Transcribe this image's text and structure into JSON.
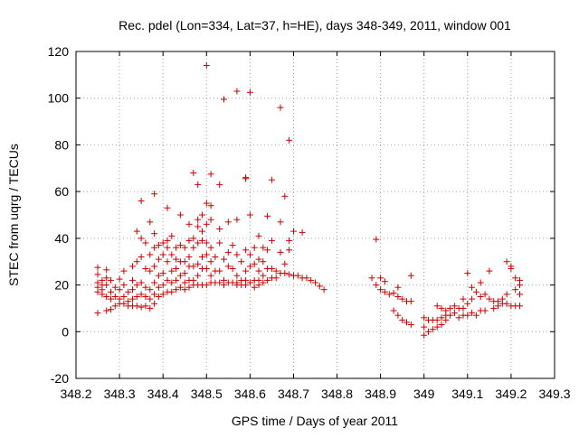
{
  "chart_data": {
    "type": "scatter",
    "title": "Rec. pdel (Lon=334, Lat=37, h=HE), days 348-349, 2011, window 001",
    "xlabel": "GPS time / Days of year 2011",
    "ylabel": "STEC from uqrg / TECUs",
    "xlim": [
      348.2,
      349.3
    ],
    "ylim": [
      -20,
      120
    ],
    "x_ticks": [
      348.2,
      348.3,
      348.4,
      348.5,
      348.6,
      348.7,
      348.8,
      348.9,
      349.0,
      349.1,
      349.2,
      349.3
    ],
    "x_tick_labels": [
      "348.2",
      "348.3",
      "348.4",
      "348.5",
      "348.6",
      "348.7",
      "348.8",
      "348.9",
      "349",
      "349.1",
      "349.2",
      "349.3"
    ],
    "y_ticks": [
      -20,
      0,
      20,
      40,
      60,
      80,
      100,
      120
    ],
    "y_tick_labels": [
      "-20",
      "0",
      "20",
      "40",
      "60",
      "80",
      "100",
      "120"
    ],
    "grid": true,
    "marker": "+",
    "color": "#cc0000",
    "points": [
      [
        348.25,
        27.5
      ],
      [
        348.25,
        24.5
      ],
      [
        348.25,
        21
      ],
      [
        348.25,
        19
      ],
      [
        348.25,
        17
      ],
      [
        348.25,
        8
      ],
      [
        348.26,
        22
      ],
      [
        348.26,
        20
      ],
      [
        348.26,
        18
      ],
      [
        348.26,
        16
      ],
      [
        348.27,
        26.5
      ],
      [
        348.27,
        23
      ],
      [
        348.27,
        20
      ],
      [
        348.27,
        15
      ],
      [
        348.27,
        9
      ],
      [
        348.28,
        22
      ],
      [
        348.28,
        17
      ],
      [
        348.28,
        14
      ],
      [
        348.28,
        9.5
      ],
      [
        348.29,
        19
      ],
      [
        348.29,
        15
      ],
      [
        348.29,
        11
      ],
      [
        348.3,
        22.5
      ],
      [
        348.3,
        18
      ],
      [
        348.3,
        14
      ],
      [
        348.3,
        12
      ],
      [
        348.31,
        26
      ],
      [
        348.31,
        20
      ],
      [
        348.31,
        15
      ],
      [
        348.31,
        12
      ],
      [
        348.32,
        17
      ],
      [
        348.32,
        13
      ],
      [
        348.32,
        11
      ],
      [
        348.33,
        28
      ],
      [
        348.33,
        22
      ],
      [
        348.33,
        18
      ],
      [
        348.33,
        14
      ],
      [
        348.33,
        11
      ],
      [
        348.34,
        43
      ],
      [
        348.34,
        30
      ],
      [
        348.34,
        20
      ],
      [
        348.34,
        15
      ],
      [
        348.34,
        11
      ],
      [
        348.35,
        56
      ],
      [
        348.35,
        40
      ],
      [
        348.35,
        32
      ],
      [
        348.35,
        21
      ],
      [
        348.35,
        16
      ],
      [
        348.35,
        10.5
      ],
      [
        348.36,
        38
      ],
      [
        348.36,
        27
      ],
      [
        348.36,
        19
      ],
      [
        348.36,
        15
      ],
      [
        348.36,
        11
      ],
      [
        348.37,
        47
      ],
      [
        348.37,
        33
      ],
      [
        348.37,
        26
      ],
      [
        348.37,
        18
      ],
      [
        348.37,
        14
      ],
      [
        348.37,
        10
      ],
      [
        348.38,
        59
      ],
      [
        348.38,
        42
      ],
      [
        348.38,
        36
      ],
      [
        348.38,
        28
      ],
      [
        348.38,
        21
      ],
      [
        348.38,
        16
      ],
      [
        348.38,
        12
      ],
      [
        348.39,
        37
      ],
      [
        348.39,
        31
      ],
      [
        348.39,
        24
      ],
      [
        348.39,
        19
      ],
      [
        348.39,
        15
      ],
      [
        348.4,
        38
      ],
      [
        348.4,
        33
      ],
      [
        348.4,
        25
      ],
      [
        348.4,
        20
      ],
      [
        348.4,
        16
      ],
      [
        348.41,
        53
      ],
      [
        348.41,
        39
      ],
      [
        348.41,
        36
      ],
      [
        348.41,
        30
      ],
      [
        348.41,
        22
      ],
      [
        348.41,
        17
      ],
      [
        348.42,
        41
      ],
      [
        348.42,
        33
      ],
      [
        348.42,
        26
      ],
      [
        348.42,
        21
      ],
      [
        348.42,
        17
      ],
      [
        348.43,
        36
      ],
      [
        348.43,
        31
      ],
      [
        348.43,
        27
      ],
      [
        348.43,
        22
      ],
      [
        348.43,
        18
      ],
      [
        348.44,
        50
      ],
      [
        348.44,
        37
      ],
      [
        348.44,
        30
      ],
      [
        348.44,
        24
      ],
      [
        348.44,
        19
      ],
      [
        348.45,
        36
      ],
      [
        348.45,
        30
      ],
      [
        348.45,
        25
      ],
      [
        348.45,
        21
      ],
      [
        348.45,
        18
      ],
      [
        348.46,
        46
      ],
      [
        348.46,
        39
      ],
      [
        348.46,
        32
      ],
      [
        348.46,
        28
      ],
      [
        348.46,
        22
      ],
      [
        348.46,
        19
      ],
      [
        348.47,
        68
      ],
      [
        348.47,
        40
      ],
      [
        348.47,
        36
      ],
      [
        348.47,
        28
      ],
      [
        348.47,
        22
      ],
      [
        348.47,
        20
      ],
      [
        348.48,
        63
      ],
      [
        348.48,
        48
      ],
      [
        348.48,
        45
      ],
      [
        348.48,
        38
      ],
      [
        348.48,
        29
      ],
      [
        348.48,
        24
      ],
      [
        348.48,
        20
      ],
      [
        348.49,
        50
      ],
      [
        348.49,
        43
      ],
      [
        348.49,
        39
      ],
      [
        348.49,
        32
      ],
      [
        348.49,
        27
      ],
      [
        348.49,
        20
      ],
      [
        348.5,
        114
      ],
      [
        348.5,
        55
      ],
      [
        348.5,
        46
      ],
      [
        348.5,
        38
      ],
      [
        348.5,
        33
      ],
      [
        348.5,
        27
      ],
      [
        348.5,
        20
      ],
      [
        348.51,
        67.5
      ],
      [
        348.51,
        54
      ],
      [
        348.51,
        48
      ],
      [
        348.51,
        36
      ],
      [
        348.51,
        30
      ],
      [
        348.51,
        24
      ],
      [
        348.51,
        21
      ],
      [
        348.52,
        32
      ],
      [
        348.52,
        26
      ],
      [
        348.52,
        21
      ],
      [
        348.53,
        63
      ],
      [
        348.53,
        44
      ],
      [
        348.53,
        38
      ],
      [
        348.53,
        26
      ],
      [
        348.53,
        21
      ],
      [
        348.54,
        99.5
      ],
      [
        348.54,
        31
      ],
      [
        348.54,
        22
      ],
      [
        348.54,
        20
      ],
      [
        348.55,
        47
      ],
      [
        348.55,
        34
      ],
      [
        348.55,
        28
      ],
      [
        348.55,
        21
      ],
      [
        348.56,
        37
      ],
      [
        348.56,
        27
      ],
      [
        348.56,
        21
      ],
      [
        348.57,
        103
      ],
      [
        348.57,
        48
      ],
      [
        348.57,
        33
      ],
      [
        348.57,
        24
      ],
      [
        348.57,
        21
      ],
      [
        348.57,
        20
      ],
      [
        348.58,
        30
      ],
      [
        348.58,
        22
      ],
      [
        348.58,
        20
      ],
      [
        348.59,
        66
      ],
      [
        348.59,
        65.5
      ],
      [
        348.59,
        35
      ],
      [
        348.59,
        26
      ],
      [
        348.59,
        22
      ],
      [
        348.59,
        20
      ],
      [
        348.6,
        102.5
      ],
      [
        348.6,
        50
      ],
      [
        348.6,
        33
      ],
      [
        348.6,
        28
      ],
      [
        348.6,
        21
      ],
      [
        348.61,
        36
      ],
      [
        348.61,
        29
      ],
      [
        348.61,
        22
      ],
      [
        348.61,
        19
      ],
      [
        348.62,
        41
      ],
      [
        348.62,
        31
      ],
      [
        348.62,
        26
      ],
      [
        348.62,
        22
      ],
      [
        348.62,
        20
      ],
      [
        348.63,
        36
      ],
      [
        348.63,
        30
      ],
      [
        348.63,
        24
      ],
      [
        348.63,
        21
      ],
      [
        348.64,
        49.5
      ],
      [
        348.64,
        35
      ],
      [
        348.64,
        27
      ],
      [
        348.64,
        22
      ],
      [
        348.65,
        65
      ],
      [
        348.65,
        39
      ],
      [
        348.65,
        27
      ],
      [
        348.65,
        23
      ],
      [
        348.66,
        26
      ],
      [
        348.66,
        23
      ],
      [
        348.67,
        96
      ],
      [
        348.67,
        47
      ],
      [
        348.67,
        34
      ],
      [
        348.67,
        25
      ],
      [
        348.68,
        58
      ],
      [
        348.68,
        29
      ],
      [
        348.68,
        25
      ],
      [
        348.69,
        82
      ],
      [
        348.69,
        39
      ],
      [
        348.69,
        35
      ],
      [
        348.69,
        24.5
      ],
      [
        348.7,
        43
      ],
      [
        348.7,
        24
      ],
      [
        348.71,
        24
      ],
      [
        348.72,
        42.5
      ],
      [
        348.72,
        23
      ],
      [
        348.73,
        23
      ],
      [
        348.74,
        22
      ],
      [
        348.75,
        21
      ],
      [
        348.76,
        19.5
      ],
      [
        348.77,
        18
      ],
      [
        348.88,
        23
      ],
      [
        348.89,
        39.5
      ],
      [
        348.89,
        20
      ],
      [
        348.9,
        23
      ],
      [
        348.9,
        18
      ],
      [
        348.91,
        21.5
      ],
      [
        348.91,
        17
      ],
      [
        348.92,
        16
      ],
      [
        348.93,
        16.5
      ],
      [
        348.93,
        9
      ],
      [
        348.94,
        19
      ],
      [
        348.94,
        15
      ],
      [
        348.94,
        7
      ],
      [
        348.95,
        14
      ],
      [
        348.95,
        5
      ],
      [
        348.96,
        13
      ],
      [
        348.96,
        4
      ],
      [
        348.97,
        24
      ],
      [
        348.97,
        13
      ],
      [
        348.97,
        3
      ],
      [
        349.0,
        6
      ],
      [
        349.0,
        2
      ],
      [
        349.0,
        -1.5
      ],
      [
        349.01,
        5
      ],
      [
        349.01,
        0
      ],
      [
        349.02,
        5
      ],
      [
        349.02,
        1
      ],
      [
        349.03,
        11
      ],
      [
        349.03,
        5
      ],
      [
        349.03,
        2
      ],
      [
        349.04,
        10
      ],
      [
        349.04,
        6
      ],
      [
        349.04,
        3
      ],
      [
        349.05,
        9
      ],
      [
        349.05,
        7
      ],
      [
        349.05,
        5
      ],
      [
        349.06,
        10
      ],
      [
        349.06,
        7
      ],
      [
        349.07,
        11
      ],
      [
        349.07,
        8
      ],
      [
        349.08,
        10
      ],
      [
        349.08,
        6
      ],
      [
        349.09,
        14
      ],
      [
        349.09,
        10
      ],
      [
        349.09,
        7
      ],
      [
        349.1,
        25
      ],
      [
        349.1,
        12
      ],
      [
        349.1,
        7
      ],
      [
        349.11,
        19
      ],
      [
        349.11,
        14
      ],
      [
        349.11,
        8
      ],
      [
        349.12,
        17
      ],
      [
        349.12,
        7
      ],
      [
        349.13,
        21
      ],
      [
        349.13,
        15
      ],
      [
        349.13,
        9
      ],
      [
        349.14,
        16
      ],
      [
        349.14,
        9
      ],
      [
        349.15,
        26
      ],
      [
        349.15,
        14
      ],
      [
        349.16,
        13
      ],
      [
        349.16,
        10
      ],
      [
        349.17,
        13
      ],
      [
        349.17,
        11
      ],
      [
        349.18,
        14
      ],
      [
        349.18,
        12
      ],
      [
        349.19,
        30
      ],
      [
        349.19,
        16
      ],
      [
        349.19,
        12
      ],
      [
        349.2,
        28
      ],
      [
        349.2,
        27
      ],
      [
        349.2,
        11
      ],
      [
        349.21,
        23
      ],
      [
        349.21,
        18
      ],
      [
        349.21,
        11
      ],
      [
        349.22,
        22
      ],
      [
        349.22,
        20
      ],
      [
        349.22,
        16
      ],
      [
        349.22,
        11
      ]
    ]
  }
}
